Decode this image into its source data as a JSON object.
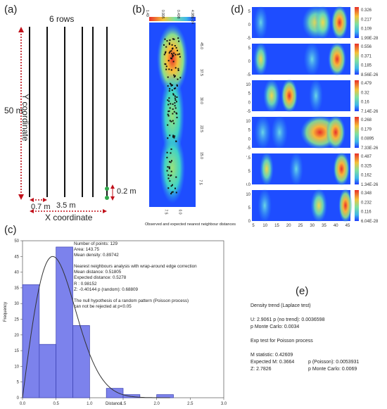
{
  "panels": {
    "a": {
      "label": "(a)",
      "rows_label": "6 rows",
      "height_label": "50 m",
      "y_axis_label": "Y coordinate",
      "x_axis_label": "X coordinate",
      "row_spacing_label": "0.7 m",
      "width_label": "3.5 m",
      "plant_spacing_label": "0.2 m"
    },
    "b": {
      "label": "(b)",
      "colorbar_ticks": [
        "1.49",
        "0.995",
        "0.498",
        "4.98E-24"
      ],
      "y_ticks": [
        "45.0",
        "37.5",
        "30.0",
        "22.5",
        "15.0",
        "7.5"
      ],
      "x_ticks": [
        "7.5",
        "0.0"
      ],
      "caption": "Observed and expected nearest neighbour distances"
    },
    "c": {
      "label": "(c)",
      "stats_lines": [
        "Number of points: 129",
        "Area: 143.75",
        "Mean density: 0.89742",
        "",
        "Nearest neighbours analysis with wrap-around edge correction",
        "Mean distance: 0.51805",
        "Expected distance: 0.5278",
        "R : 0.98152",
        "Z: -0.40144     p (random): 0.68809",
        "",
        "The null hypothesis of a random pattern (Poisson process)",
        "can not be rejected at p<0.05"
      ],
      "ylabel": "Frequency",
      "xlabel": "Distance",
      "x_ticks": [
        "0.0",
        "0.5",
        "1.0",
        "1.5",
        "2.0",
        "2.5",
        "3.0"
      ],
      "y_ticks": [
        "0",
        "5",
        "10",
        "15",
        "20",
        "25",
        "30",
        "35",
        "40",
        "45",
        "50"
      ]
    },
    "d": {
      "label": "(d)",
      "x_ticks": [
        "5",
        "10",
        "15",
        "20",
        "25",
        "30",
        "35",
        "40",
        "45"
      ],
      "strips": [
        {
          "y_ticks": [
            "5",
            "0",
            "-5"
          ],
          "cb_ticks": [
            "0.326",
            "0.217",
            "0.109",
            "1.99E-28"
          ]
        },
        {
          "y_ticks": [
            "5",
            "0",
            "-5"
          ],
          "cb_ticks": [
            "0.556",
            "0.371",
            "0.185",
            "8.56E-26"
          ]
        },
        {
          "y_ticks": [
            "10",
            "5",
            "0",
            "-5"
          ],
          "cb_ticks": [
            "0.479",
            "0.32",
            "0.16",
            "7.14E-26"
          ]
        },
        {
          "y_ticks": [
            "10",
            "5",
            "0",
            "-5"
          ],
          "cb_ticks": [
            "0.268",
            "0.179",
            "0.0895",
            "7.33E-26"
          ]
        },
        {
          "y_ticks": [
            "7.5",
            "5",
            "0.0"
          ],
          "cb_ticks": [
            "0.487",
            "0.325",
            "0.162",
            "1.34E-26"
          ]
        },
        {
          "y_ticks": [
            "10",
            "5",
            "0"
          ],
          "cb_ticks": [
            "0.348",
            "0.232",
            "0.116",
            "6.04E-28"
          ]
        }
      ]
    },
    "e": {
      "label": "(e)",
      "title": "Density trend (Laplace test)",
      "u_line": "U: 2.9061  p (no trend): 0.0036598",
      "p_mc_line": "p Monte Carlo: 0.0034",
      "exp_title": "Exp test for Poisson process",
      "m_line": "M statistic:  0.42609",
      "expected_line_a": "Expected M: 0.3664",
      "expected_line_b": "p (Poisson):  0.0053931",
      "z_line_a": "Z: 2.7826",
      "z_line_b": "p Monte Carlo: 0.0069"
    }
  },
  "chart_data": {
    "type": "bar",
    "title": "",
    "xlabel": "Distance",
    "ylabel": "Frequency",
    "bin_edges": [
      0.0,
      0.25,
      0.5,
      0.75,
      1.0,
      1.25,
      1.5,
      1.75,
      2.0,
      2.25
    ],
    "values": [
      36,
      17,
      48,
      23,
      0,
      3,
      1,
      0,
      1
    ],
    "xlim": [
      0,
      3.0
    ],
    "ylim": [
      0,
      50
    ],
    "colors": {
      "bar": "#7c82ec",
      "edge": "#3a3fb0",
      "curve": "#333333"
    }
  }
}
